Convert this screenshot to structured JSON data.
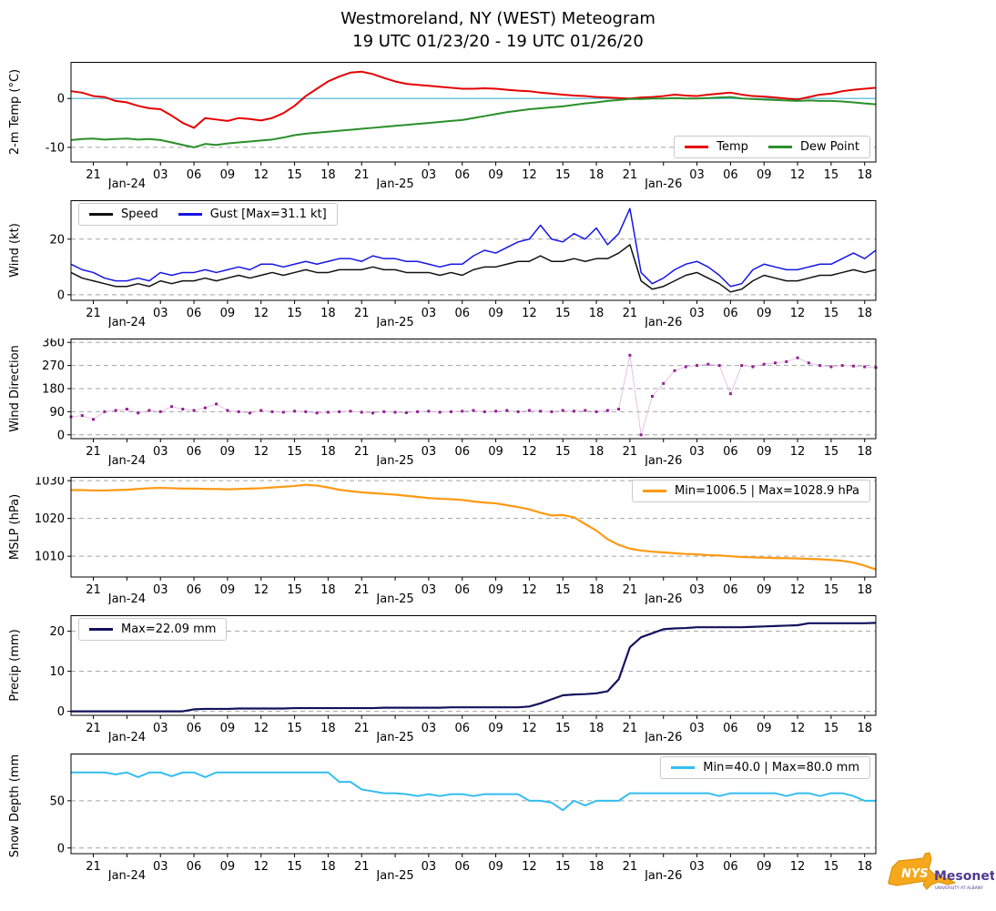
{
  "title": {
    "line1": "Westmoreland, NY (WEST) Meteogram",
    "line2": "19 UTC 01/23/20 - 19 UTC 01/26/20"
  },
  "logo": {
    "nys": "NYS",
    "mesonet": "Mesonet",
    "tagline": "UNIVERSITY AT ALBANY"
  },
  "colors": {
    "grid": "#a3a3a3",
    "refline": "#6cc5e0",
    "spine": "#000000",
    "background": "#ffffff"
  },
  "x": {
    "min": 0,
    "max": 72,
    "unit": "hours since 19 UTC 01/23/20",
    "ticks": [
      {
        "pos": 2,
        "label": "21"
      },
      {
        "pos": 5,
        "label": "Jan-24",
        "date": true
      },
      {
        "pos": 8,
        "label": "03"
      },
      {
        "pos": 11,
        "label": "06"
      },
      {
        "pos": 14,
        "label": "09"
      },
      {
        "pos": 17,
        "label": "12"
      },
      {
        "pos": 20,
        "label": "15"
      },
      {
        "pos": 23,
        "label": "18"
      },
      {
        "pos": 26,
        "label": "21"
      },
      {
        "pos": 29,
        "label": "Jan-25",
        "date": true
      },
      {
        "pos": 32,
        "label": "03"
      },
      {
        "pos": 35,
        "label": "06"
      },
      {
        "pos": 38,
        "label": "09"
      },
      {
        "pos": 41,
        "label": "12"
      },
      {
        "pos": 44,
        "label": "15"
      },
      {
        "pos": 47,
        "label": "18"
      },
      {
        "pos": 50,
        "label": "21"
      },
      {
        "pos": 53,
        "label": "Jan-26",
        "date": true
      },
      {
        "pos": 56,
        "label": "03"
      },
      {
        "pos": 59,
        "label": "06"
      },
      {
        "pos": 62,
        "label": "09"
      },
      {
        "pos": 65,
        "label": "12"
      },
      {
        "pos": 68,
        "label": "15"
      },
      {
        "pos": 71,
        "label": "18"
      }
    ]
  },
  "chart_data": [
    {
      "id": "temp",
      "type": "line",
      "ylabel": "2-m Temp (°C)",
      "ylim": [
        -13,
        7.5
      ],
      "yticks": [
        -10,
        0
      ],
      "refline": 0,
      "legend": {
        "position": "bottom-right"
      },
      "series": [
        {
          "id": "temp",
          "label": "Temp",
          "color": "#e60000",
          "width": 2,
          "values": [
            1.5,
            1.2,
            0.5,
            0.3,
            -0.5,
            -0.8,
            -1.5,
            -2.0,
            -2.2,
            -3.5,
            -5.0,
            -6.0,
            -4.0,
            -4.3,
            -4.6,
            -4.0,
            -4.2,
            -4.5,
            -4.0,
            -3.0,
            -1.5,
            0.5,
            2.0,
            3.5,
            4.5,
            5.3,
            5.5,
            5.0,
            4.2,
            3.5,
            3.0,
            2.8,
            2.6,
            2.4,
            2.2,
            2.0,
            2.0,
            2.1,
            2.0,
            1.8,
            1.6,
            1.5,
            1.2,
            1.0,
            0.8,
            0.6,
            0.5,
            0.3,
            0.2,
            0.1,
            0.0,
            0.2,
            0.3,
            0.5,
            0.8,
            0.6,
            0.5,
            0.8,
            1.0,
            1.2,
            0.8,
            0.5,
            0.4,
            0.2,
            0.0,
            -0.2,
            0.3,
            0.8,
            1.0,
            1.5,
            1.8,
            2.0,
            2.2
          ]
        },
        {
          "id": "dew_point",
          "label": "Dew Point",
          "color": "#2a8f2a",
          "width": 2,
          "values": [
            -8.5,
            -8.3,
            -8.2,
            -8.4,
            -8.3,
            -8.2,
            -8.4,
            -8.3,
            -8.5,
            -9.0,
            -9.5,
            -10.0,
            -9.3,
            -9.5,
            -9.2,
            -9.0,
            -8.8,
            -8.6,
            -8.4,
            -8.0,
            -7.5,
            -7.2,
            -7.0,
            -6.8,
            -6.6,
            -6.4,
            -6.2,
            -6.0,
            -5.8,
            -5.6,
            -5.4,
            -5.2,
            -5.0,
            -4.8,
            -4.6,
            -4.4,
            -4.0,
            -3.6,
            -3.2,
            -2.8,
            -2.5,
            -2.2,
            -2.0,
            -1.8,
            -1.6,
            -1.3,
            -1.0,
            -0.8,
            -0.5,
            -0.3,
            -0.1,
            -0.1,
            0.0,
            0.0,
            0.1,
            0.0,
            0.0,
            0.1,
            0.2,
            0.3,
            0.0,
            -0.1,
            -0.2,
            -0.3,
            -0.4,
            -0.5,
            -0.4,
            -0.5,
            -0.5,
            -0.6,
            -0.8,
            -1.0,
            -1.2
          ]
        }
      ]
    },
    {
      "id": "wind",
      "type": "line",
      "ylabel": "Wind (kt)",
      "ylim": [
        -2,
        34
      ],
      "yticks": [
        0,
        20
      ],
      "legend": {
        "position": "top-left"
      },
      "series": [
        {
          "id": "speed",
          "label": "Speed",
          "color": "#111111",
          "width": 1.5,
          "values": [
            8,
            6,
            5,
            4,
            3,
            3,
            4,
            3,
            5,
            4,
            5,
            5,
            6,
            5,
            6,
            7,
            6,
            7,
            8,
            7,
            8,
            9,
            8,
            8,
            9,
            9,
            9,
            10,
            9,
            9,
            8,
            8,
            8,
            7,
            8,
            7,
            9,
            10,
            10,
            11,
            12,
            12,
            14,
            12,
            12,
            13,
            12,
            13,
            13,
            15,
            18,
            5,
            2,
            3,
            5,
            7,
            8,
            6,
            4,
            1,
            2,
            5,
            7,
            6,
            5,
            5,
            6,
            7,
            7,
            8,
            9,
            8,
            9
          ]
        },
        {
          "id": "gust",
          "label": "Gust [Max=31.1 kt]",
          "color": "#1515e6",
          "width": 1.5,
          "values": [
            11,
            9,
            8,
            6,
            5,
            5,
            6,
            5,
            8,
            7,
            8,
            8,
            9,
            8,
            9,
            10,
            9,
            11,
            11,
            10,
            11,
            12,
            11,
            12,
            13,
            13,
            12,
            14,
            13,
            13,
            12,
            12,
            11,
            10,
            11,
            11,
            14,
            16,
            15,
            17,
            19,
            20,
            25,
            20,
            19,
            22,
            20,
            24,
            18,
            22,
            31,
            8,
            4,
            6,
            9,
            11,
            12,
            10,
            7,
            3,
            4,
            9,
            11,
            10,
            9,
            9,
            10,
            11,
            11,
            13,
            15,
            13,
            16
          ]
        }
      ]
    },
    {
      "id": "wind_direction",
      "type": "scatter",
      "ylabel": "Wind Direction",
      "ylim": [
        -15,
        375
      ],
      "yticks": [
        0,
        90,
        180,
        270,
        360
      ],
      "series": [
        {
          "id": "wind_direction",
          "label": "Wind Direction",
          "color": "#8f218f",
          "connect_color": "#e0b4e0",
          "width": 0.8,
          "values": [
            70,
            75,
            60,
            90,
            95,
            100,
            85,
            95,
            90,
            110,
            100,
            95,
            105,
            120,
            95,
            90,
            85,
            95,
            90,
            88,
            92,
            90,
            85,
            88,
            90,
            92,
            88,
            85,
            90,
            88,
            86,
            90,
            92,
            88,
            90,
            92,
            95,
            90,
            92,
            95,
            90,
            95,
            92,
            90,
            95,
            92,
            95,
            90,
            95,
            100,
            310,
            0,
            150,
            200,
            250,
            265,
            270,
            275,
            270,
            160,
            270,
            265,
            275,
            280,
            285,
            300,
            280,
            270,
            265,
            270,
            268,
            265,
            262
          ]
        }
      ]
    },
    {
      "id": "mslp",
      "type": "line",
      "ylabel": "MSLP (hPa)",
      "ylim": [
        1004.5,
        1031
      ],
      "yticks": [
        1010,
        1020,
        1030
      ],
      "legend": {
        "position": "top-right"
      },
      "series": [
        {
          "id": "mslp",
          "label": "Min=1006.5 | Max=1028.9 hPa",
          "color": "#ff9913",
          "width": 2.2,
          "values": [
            1027.5,
            1027.5,
            1027.4,
            1027.4,
            1027.5,
            1027.6,
            1027.8,
            1028.0,
            1028.1,
            1028.0,
            1027.9,
            1027.9,
            1027.8,
            1027.8,
            1027.7,
            1027.8,
            1027.9,
            1028.0,
            1028.2,
            1028.4,
            1028.6,
            1028.9,
            1028.7,
            1028.2,
            1027.6,
            1027.2,
            1026.9,
            1026.7,
            1026.5,
            1026.3,
            1026.0,
            1025.7,
            1025.4,
            1025.2,
            1025.1,
            1024.9,
            1024.5,
            1024.2,
            1024.0,
            1023.5,
            1023.0,
            1022.4,
            1021.5,
            1020.8,
            1020.9,
            1020.3,
            1018.5,
            1016.8,
            1014.5,
            1013.0,
            1012.0,
            1011.5,
            1011.2,
            1011.0,
            1010.8,
            1010.6,
            1010.5,
            1010.3,
            1010.2,
            1010.0,
            1009.8,
            1009.7,
            1009.6,
            1009.5,
            1009.5,
            1009.4,
            1009.3,
            1009.2,
            1009.0,
            1008.8,
            1008.3,
            1007.5,
            1006.5
          ]
        }
      ]
    },
    {
      "id": "precip",
      "type": "line",
      "ylabel": "Precip (mm)",
      "ylim": [
        -1,
        24
      ],
      "yticks": [
        0,
        10,
        20
      ],
      "legend": {
        "position": "top-left"
      },
      "series": [
        {
          "id": "precip",
          "label": "Max=22.09 mm",
          "color": "#12125e",
          "width": 2.2,
          "values": [
            0,
            0,
            0,
            0,
            0,
            0,
            0,
            0,
            0,
            0,
            0,
            0.5,
            0.6,
            0.6,
            0.6,
            0.7,
            0.7,
            0.7,
            0.7,
            0.7,
            0.8,
            0.8,
            0.8,
            0.8,
            0.8,
            0.8,
            0.8,
            0.8,
            0.9,
            0.9,
            0.9,
            0.9,
            0.9,
            0.9,
            1.0,
            1.0,
            1.0,
            1.0,
            1.0,
            1.0,
            1.0,
            1.2,
            2.0,
            3.0,
            4.0,
            4.2,
            4.3,
            4.5,
            5.0,
            8.0,
            16.0,
            18.5,
            19.5,
            20.5,
            20.7,
            20.8,
            21.0,
            21.0,
            21.0,
            21.0,
            21.0,
            21.1,
            21.2,
            21.3,
            21.4,
            21.5,
            22.0,
            22.0,
            22.0,
            22.0,
            22.0,
            22.0,
            22.09
          ]
        }
      ]
    },
    {
      "id": "snow_depth",
      "type": "line",
      "ylabel": "Snow Depth (mm)",
      "ylim": [
        -6,
        100
      ],
      "yticks": [
        0,
        50
      ],
      "legend": {
        "position": "top-right"
      },
      "series": [
        {
          "id": "snow_depth",
          "label": "Min=40.0 | Max=80.0 mm",
          "color": "#33bdf0",
          "width": 2,
          "values": [
            80,
            80,
            80,
            80,
            78,
            80,
            75,
            80,
            80,
            76,
            80,
            80,
            75,
            80,
            80,
            80,
            80,
            80,
            80,
            80,
            80,
            80,
            80,
            80,
            70,
            70,
            62,
            60,
            58,
            58,
            57,
            55,
            57,
            55,
            57,
            57,
            55,
            57,
            57,
            57,
            57,
            50,
            50,
            48,
            40,
            50,
            45,
            50,
            50,
            50,
            58,
            58,
            58,
            58,
            58,
            58,
            58,
            58,
            55,
            58,
            58,
            58,
            58,
            58,
            55,
            58,
            58,
            55,
            58,
            58,
            55,
            50,
            50
          ]
        }
      ]
    }
  ]
}
